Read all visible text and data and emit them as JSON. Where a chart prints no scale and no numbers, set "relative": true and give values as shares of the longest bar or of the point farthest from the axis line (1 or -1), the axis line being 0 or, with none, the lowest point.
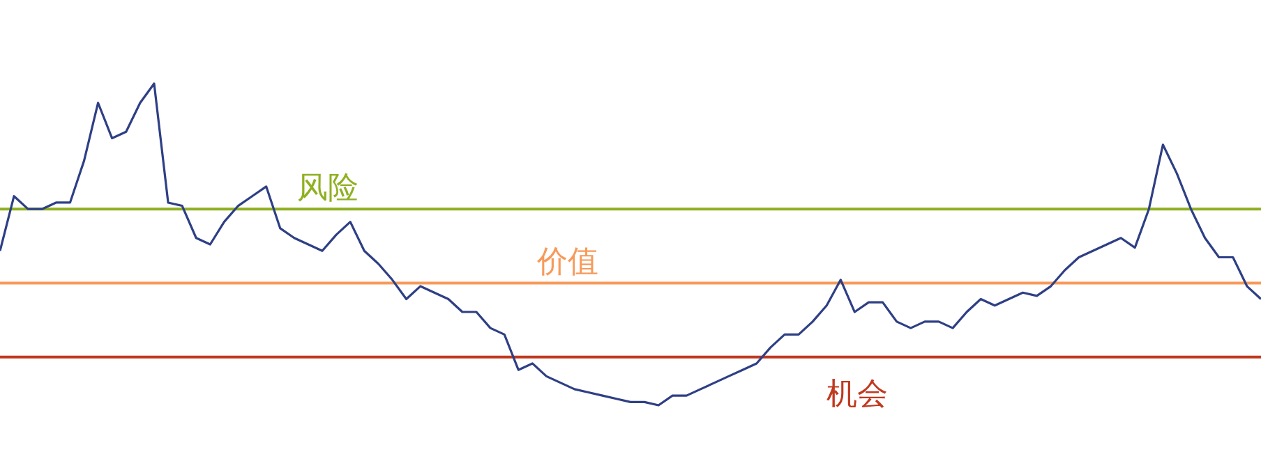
{
  "chart_data": {
    "type": "line",
    "relative": true,
    "categories": [
      null,
      null,
      null,
      null,
      null,
      null,
      null,
      null,
      null,
      null,
      null,
      null,
      null,
      null,
      null,
      null,
      null,
      null,
      null,
      null,
      null,
      null,
      null,
      null,
      null,
      null,
      null,
      null,
      null,
      null,
      null,
      null,
      null,
      null,
      null,
      null,
      null,
      null,
      null,
      null,
      null,
      null,
      null,
      null,
      null,
      null,
      null,
      null,
      null,
      null,
      null,
      null,
      null,
      null,
      null,
      null,
      null,
      null,
      null,
      null,
      null,
      null,
      null,
      null,
      null,
      null,
      null,
      null,
      null,
      null,
      null,
      null,
      null,
      null,
      null,
      null,
      null,
      null,
      null,
      null,
      null,
      null,
      null,
      null,
      null,
      null,
      null,
      null,
      null,
      null,
      null
    ],
    "series": [
      {
        "color": "#2e3f85",
        "values": [
          0.48,
          0.65,
          0.61,
          0.61,
          0.63,
          0.63,
          0.76,
          0.94,
          0.83,
          0.85,
          0.94,
          1.0,
          0.63,
          0.62,
          0.52,
          0.5,
          0.57,
          0.62,
          0.65,
          0.68,
          0.55,
          0.52,
          0.5,
          0.48,
          0.53,
          0.57,
          0.48,
          0.44,
          0.39,
          0.33,
          0.37,
          0.35,
          0.33,
          0.29,
          0.29,
          0.24,
          0.22,
          0.11,
          0.13,
          0.09,
          0.07,
          0.05,
          0.04,
          0.03,
          0.02,
          0.01,
          0.01,
          0,
          0.03,
          0.03,
          0.05,
          0.07,
          0.09,
          0.11,
          0.13,
          0.18,
          0.22,
          0.22,
          0.26,
          0.31,
          0.39,
          0.29,
          0.32,
          0.32,
          0.26,
          0.24,
          0.26,
          0.26,
          0.24,
          0.29,
          0.33,
          0.31,
          0.33,
          0.35,
          0.34,
          0.37,
          0.42,
          0.46,
          0.48,
          0.5,
          0.52,
          0.49,
          0.61,
          0.81,
          0.72,
          0.61,
          0.52,
          0.46,
          0.46,
          0.37,
          0.33
        ]
      }
    ],
    "ref_lines": [
      {
        "axis": "y",
        "value": 0.61,
        "label": "风险",
        "color": "#8fb021"
      },
      {
        "axis": "y",
        "value": 0.38,
        "label": "价值",
        "color": "#f79a5a"
      },
      {
        "axis": "y",
        "value": 0.15,
        "label": "机会",
        "color": "#c0391f"
      }
    ],
    "marker": "none",
    "line_style": "solid",
    "legend": false
  }
}
